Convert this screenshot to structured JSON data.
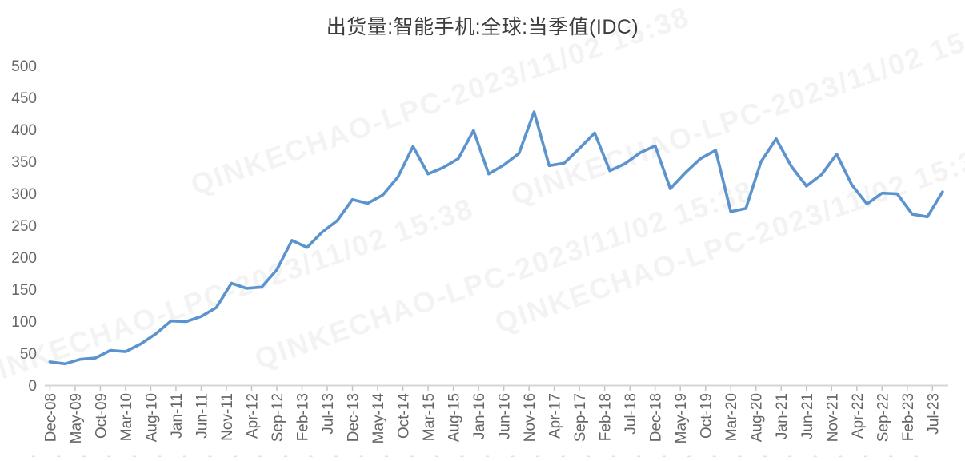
{
  "title": "出货量:智能手机:全球:当季值(IDC)",
  "watermark": {
    "text": "QINKECHAO-LPC-2023/11/02 15:38"
  },
  "colors": {
    "line": "#5a93cd",
    "axis_line": "#d6d6d6",
    "tick": "#c4c4c4",
    "axis_label": "#666666",
    "title": "#3d3d3d",
    "background": "#ffffff"
  },
  "chart_data": {
    "type": "line",
    "title": "出货量:智能手机:全球:当季值(IDC)",
    "series_name": "出货量:智能手机:全球:当季值(IDC)",
    "xlabel": "",
    "ylabel": "",
    "ylim": [
      0,
      500
    ],
    "y_ticks": [
      0,
      50,
      100,
      150,
      200,
      250,
      300,
      350,
      400,
      450,
      500
    ],
    "grid": false,
    "legend_position": "none",
    "x_tick_labels": [
      "Dec-08",
      "May-09",
      "Oct-09",
      "Mar-10",
      "Aug-10",
      "Jan-11",
      "Jun-11",
      "Nov-11",
      "Apr-12",
      "Sep-12",
      "Feb-13",
      "Jul-13",
      "Dec-13",
      "May-14",
      "Oct-14",
      "Mar-15",
      "Aug-15",
      "Jan-16",
      "Jun-16",
      "Nov-16",
      "Apr-17",
      "Sep-17",
      "Feb-18",
      "Jul-18",
      "Dec-18",
      "May-19",
      "Oct-19",
      "Mar-20",
      "Aug-20",
      "Jan-21",
      "Jun-21",
      "Nov-21",
      "Apr-22",
      "Sep-22",
      "Feb-23",
      "Jul-23"
    ],
    "months_per_tick": 5,
    "months_per_point": 3,
    "x": [
      "Dec-08",
      "Mar-09",
      "Jun-09",
      "Sep-09",
      "Dec-09",
      "Mar-10",
      "Jun-10",
      "Sep-10",
      "Dec-10",
      "Mar-11",
      "Jun-11",
      "Sep-11",
      "Dec-11",
      "Mar-12",
      "Jun-12",
      "Sep-12",
      "Dec-12",
      "Mar-13",
      "Jun-13",
      "Sep-13",
      "Dec-13",
      "Mar-14",
      "Jun-14",
      "Sep-14",
      "Dec-14",
      "Mar-15",
      "Jun-15",
      "Sep-15",
      "Dec-15",
      "Mar-16",
      "Jun-16",
      "Sep-16",
      "Dec-16",
      "Mar-17",
      "Jun-17",
      "Sep-17",
      "Dec-17",
      "Mar-18",
      "Jun-18",
      "Sep-18",
      "Dec-18",
      "Mar-19",
      "Jun-19",
      "Sep-19",
      "Dec-19",
      "Mar-20",
      "Jun-20",
      "Sep-20",
      "Dec-20",
      "Mar-21",
      "Jun-21",
      "Sep-21",
      "Dec-21",
      "Mar-22",
      "Jun-22",
      "Sep-22",
      "Dec-22",
      "Mar-23",
      "Jun-23",
      "Sep-23"
    ],
    "values": [
      37,
      34,
      41,
      43,
      55,
      53,
      65,
      81,
      101,
      100,
      108,
      122,
      160,
      152,
      154,
      181,
      227,
      216,
      240,
      258,
      291,
      285,
      298,
      326,
      374,
      331,
      341,
      355,
      399,
      331,
      345,
      363,
      428,
      344,
      348,
      371,
      395,
      336,
      347,
      364,
      375,
      308,
      333,
      355,
      368,
      272,
      277,
      350,
      386,
      343,
      312,
      330,
      362,
      314,
      284,
      301,
      300,
      268,
      264,
      303
    ]
  }
}
